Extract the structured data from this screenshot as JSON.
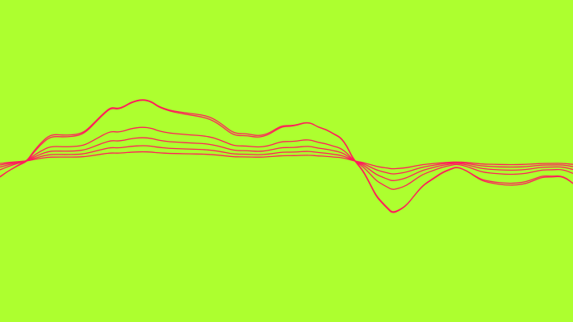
{
  "colors": {
    "background": "#adff2f",
    "stroke": "#ff1f5a"
  },
  "visual": {
    "line_count": 6
  }
}
